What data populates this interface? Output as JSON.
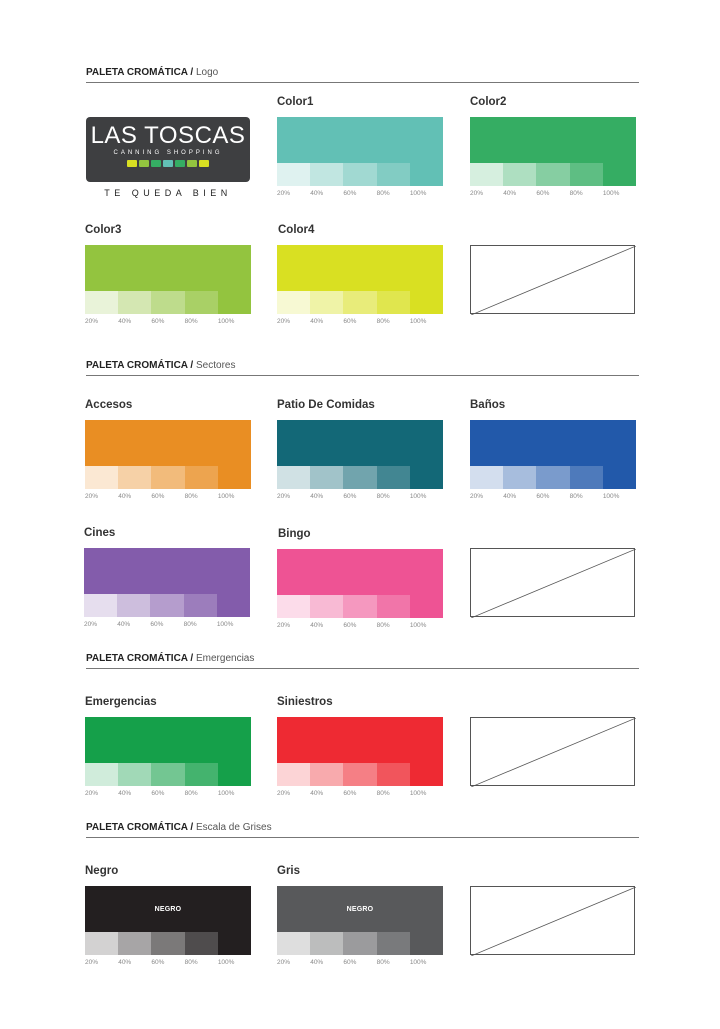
{
  "sections": {
    "logo": {
      "bold": "PALETA CROMÁTICA /",
      "sub": " Logo"
    },
    "sectores": {
      "bold": "PALETA CROMÁTICA /",
      "sub": " Sectores"
    },
    "emergencias": {
      "bold": "PALETA CROMÁTICA /",
      "sub": " Emergencias"
    },
    "grises": {
      "bold": "PALETA CROMÁTICA /",
      "sub": " Escala de Grises"
    }
  },
  "logo": {
    "name": "LAS TOSCAS",
    "subtitle": "CANNING SHOPPING",
    "tagline": "TE QUEDA BIEN",
    "dot_colors": [
      "#d9e022",
      "#93c43f",
      "#35ad63",
      "#62c0b5",
      "#35ad63",
      "#93c43f",
      "#d9e022"
    ]
  },
  "percent_labels": [
    "20%",
    "40%",
    "60%",
    "80%",
    "100%"
  ],
  "swatches": [
    {
      "key": "color1",
      "title": "Color1",
      "color": "#62c0b5",
      "tints": [
        "#dff2f0",
        "#c1e6e1",
        "#a1d9d2",
        "#82ccc3",
        "#62c0b5"
      ]
    },
    {
      "key": "color2",
      "title": "Color2",
      "color": "#35ad63",
      "tints": [
        "#d6efdf",
        "#aedfc1",
        "#86cea2",
        "#5ebe83",
        "#35ad63"
      ]
    },
    {
      "key": "color3",
      "title": "Color3",
      "color": "#93c43f",
      "tints": [
        "#e9f3d9",
        "#d4e7b2",
        "#bedc8c",
        "#a9d066",
        "#93c43f"
      ]
    },
    {
      "key": "color4",
      "title": "Color4",
      "color": "#d9e022",
      "tints": [
        "#f7f9d3",
        "#eff3a7",
        "#e8ec7a",
        "#e0e64e",
        "#d9e022"
      ]
    },
    {
      "key": "accesos",
      "title": "Accesos",
      "color": "#e98e23",
      "tints": [
        "#fbe8d3",
        "#f6d1a7",
        "#f2bb7b",
        "#eda44f",
        "#e98e23"
      ]
    },
    {
      "key": "patio",
      "title": "Patio De Comidas",
      "color": "#136877",
      "tints": [
        "#d0e1e4",
        "#a1c3c9",
        "#71a4ad",
        "#428692",
        "#136877"
      ]
    },
    {
      "key": "banos",
      "title": "Baños",
      "color": "#2259aa",
      "tints": [
        "#d3deee",
        "#a7bddd",
        "#7a9bcc",
        "#4e7abb",
        "#2259aa"
      ]
    },
    {
      "key": "cines",
      "title": "Cines",
      "color": "#835cab",
      "tints": [
        "#e6deee",
        "#cdbedd",
        "#b59dcd",
        "#9c7dbc",
        "#835cab"
      ]
    },
    {
      "key": "bingo",
      "title": "Bingo",
      "color": "#ee5394",
      "tints": [
        "#fcdcea",
        "#f8bad4",
        "#f598bf",
        "#f175a9",
        "#ee5394"
      ]
    },
    {
      "key": "emergencias",
      "title": "Emergencias",
      "color": "#15a04a",
      "tints": [
        "#d0ecdb",
        "#a1d9b7",
        "#73c692",
        "#44b36e",
        "#15a04a"
      ]
    },
    {
      "key": "siniestros",
      "title": "Siniestros",
      "color": "#ee2a33",
      "tints": [
        "#fcd4d6",
        "#f8aaad",
        "#f57f85",
        "#f1555c",
        "#ee2a33"
      ]
    },
    {
      "key": "negro",
      "title": "Negro",
      "color": "#231f20",
      "inner_label": "NEGRO",
      "tints": [
        "#d3d2d2",
        "#a7a5a6",
        "#7b7979",
        "#4f4c4d",
        "#231f20"
      ]
    },
    {
      "key": "gris",
      "title": "Gris",
      "color": "#58595b",
      "inner_label": "NEGRO",
      "tints": [
        "#dedede",
        "#bcbdbd",
        "#9b9b9d",
        "#797a7c",
        "#58595b"
      ]
    }
  ]
}
